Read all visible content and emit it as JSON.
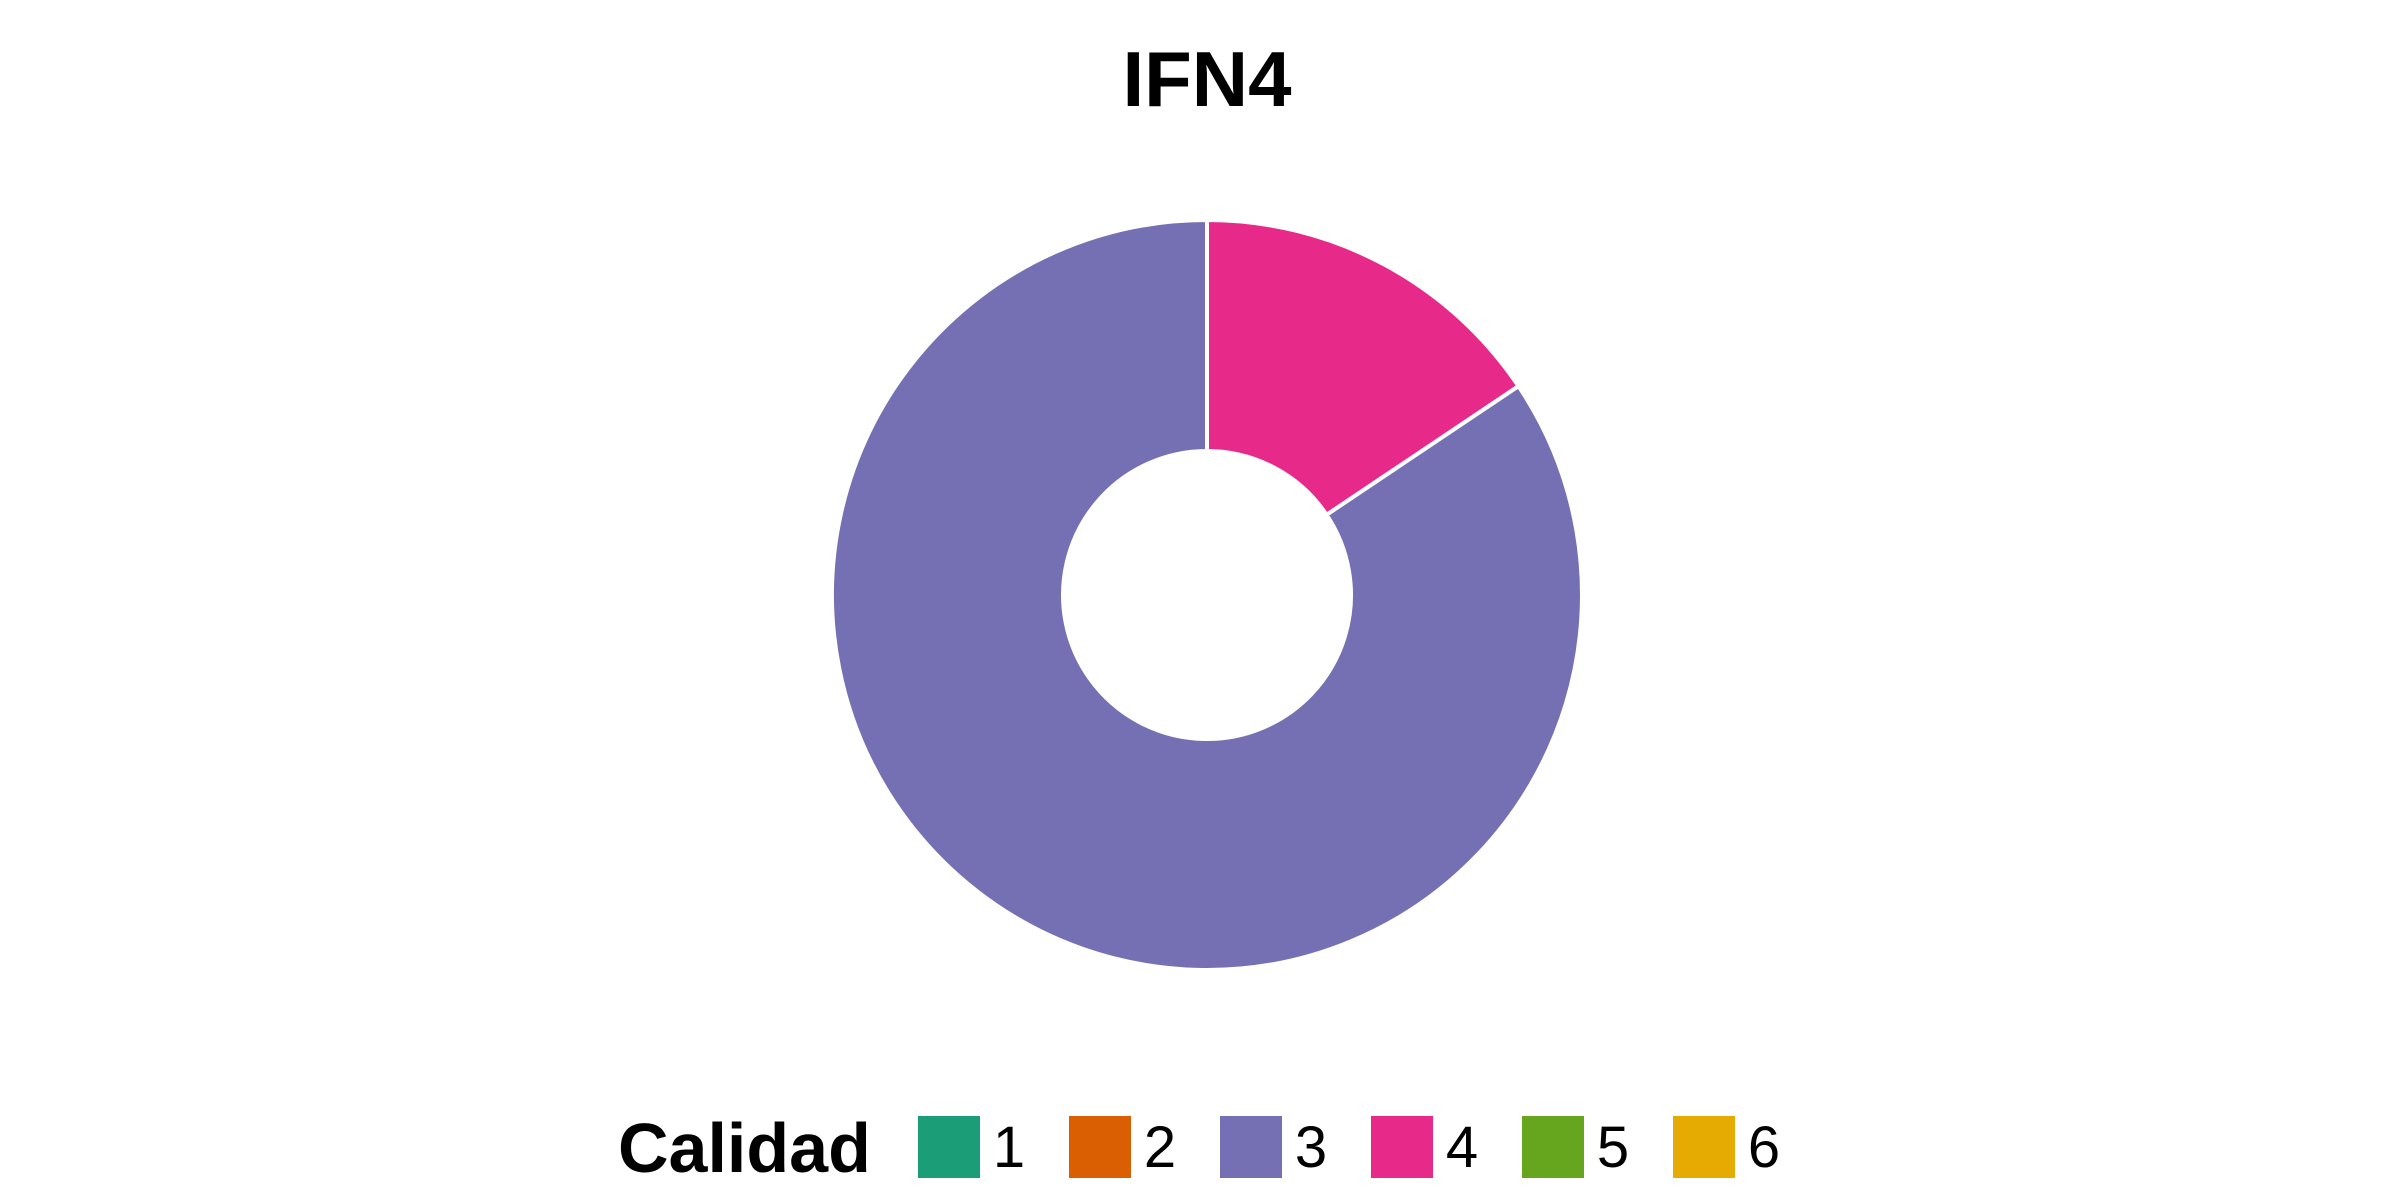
{
  "chart_data": {
    "type": "pie",
    "title": "IFN4",
    "legend": {
      "title": "Calidad",
      "placement": "bottom",
      "entries": [
        {
          "label": "1",
          "color": "#1B9E77"
        },
        {
          "label": "2",
          "color": "#D95F02"
        },
        {
          "label": "3",
          "color": "#7570B3"
        },
        {
          "label": "4",
          "color": "#E7298A"
        },
        {
          "label": "5",
          "color": "#66A61E"
        },
        {
          "label": "6",
          "color": "#E6AB02"
        }
      ]
    },
    "slices": [
      {
        "category": "4",
        "value": 0.156,
        "color": "#E7298A"
      },
      {
        "category": "3",
        "value": 0.844,
        "color": "#7570B3"
      }
    ]
  }
}
